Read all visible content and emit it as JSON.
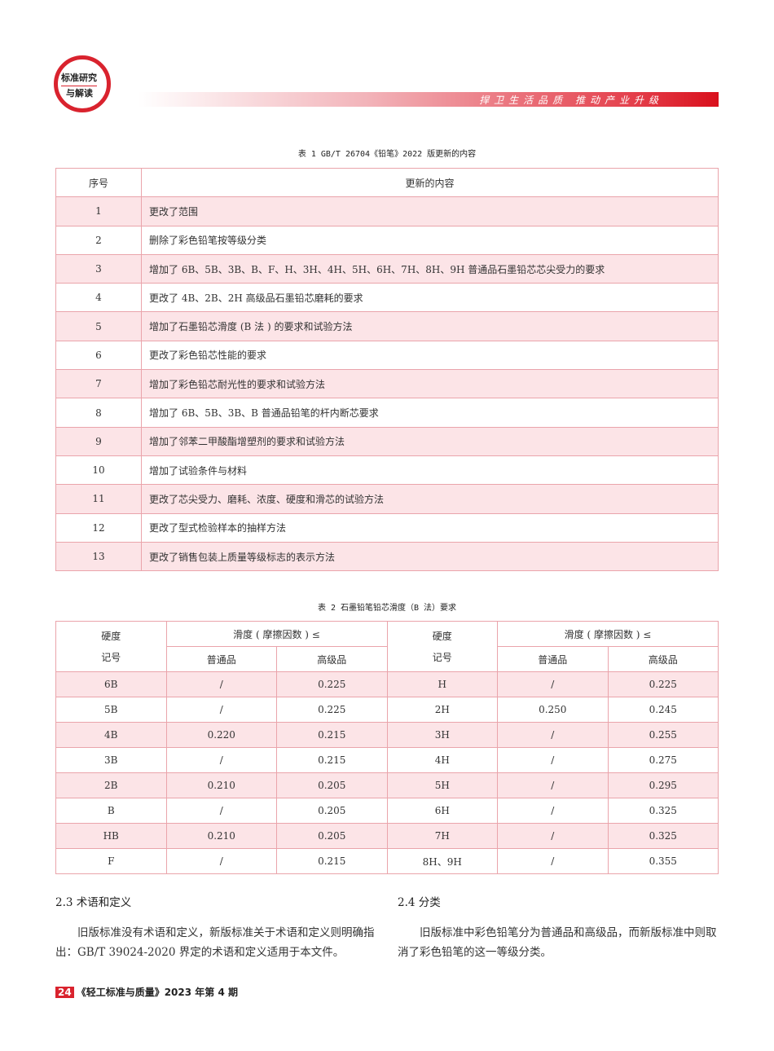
{
  "header": {
    "logo_line1": "标准研究",
    "logo_line2": "与解读",
    "slogan": "捍卫生活品质  推动产业升级",
    "accent": "#d9232e"
  },
  "table1": {
    "caption": "表 1 GB/T 26704《铅笔》2022 版更新的内容",
    "headers": [
      "序号",
      "更新的内容"
    ],
    "rows": [
      [
        "1",
        "更改了范围"
      ],
      [
        "2",
        "删除了彩色铅笔按等级分类"
      ],
      [
        "3",
        "增加了 6B、5B、3B、B、F、H、3H、4H、5H、6H、7H、8H、9H 普通品石墨铅芯芯尖受力的要求"
      ],
      [
        "4",
        "更改了 4B、2B、2H 高级品石墨铅芯磨耗的要求"
      ],
      [
        "5",
        "增加了石墨铅芯滑度 (B 法 ) 的要求和试验方法"
      ],
      [
        "6",
        "更改了彩色铅芯性能的要求"
      ],
      [
        "7",
        "增加了彩色铅芯耐光性的要求和试验方法"
      ],
      [
        "8",
        "增加了 6B、5B、3B、B 普通品铅笔的杆内断芯要求"
      ],
      [
        "9",
        "增加了邻苯二甲酸酯增塑剂的要求和试验方法"
      ],
      [
        "10",
        "增加了试验条件与材料"
      ],
      [
        "11",
        "更改了芯尖受力、磨耗、浓度、硬度和滑芯的试验方法"
      ],
      [
        "12",
        "更改了型式检验样本的抽样方法"
      ],
      [
        "13",
        "更改了销售包装上质量等级标志的表示方法"
      ]
    ]
  },
  "table2": {
    "caption": "表 2 石墨铅笔铅芯滑度（B 法）要求",
    "hardness_line1": "硬度",
    "hardness_line2": "记号",
    "group": "滑度 ( 摩擦因数 ) ≤",
    "sub": [
      "普通品",
      "高级品"
    ],
    "rows": [
      [
        "6B",
        "/",
        "0.225",
        "H",
        "/",
        "0.225"
      ],
      [
        "5B",
        "/",
        "0.225",
        "2H",
        "0.250",
        "0.245"
      ],
      [
        "4B",
        "0.220",
        "0.215",
        "3H",
        "/",
        "0.255"
      ],
      [
        "3B",
        "/",
        "0.215",
        "4H",
        "/",
        "0.275"
      ],
      [
        "2B",
        "0.210",
        "0.205",
        "5H",
        "/",
        "0.295"
      ],
      [
        "B",
        "/",
        "0.205",
        "6H",
        "/",
        "0.325"
      ],
      [
        "HB",
        "0.210",
        "0.205",
        "7H",
        "/",
        "0.325"
      ],
      [
        "F",
        "/",
        "0.215",
        "8H、9H",
        "/",
        "0.355"
      ]
    ]
  },
  "sections": [
    {
      "title": "2.3 术语和定义",
      "text": "旧版标准没有术语和定义，新版标准关于术语和定义则明确指出：GB/T 39024-2020 界定的术语和定义适用于本文件。"
    },
    {
      "title": "2.4 分类",
      "text": "旧版标准中彩色铅笔分为普通品和高级品，而新版标准中则取消了彩色铅笔的这一等级分类。"
    }
  ],
  "footer": {
    "page": "24",
    "journal": "《轻工标准与质量》2023 年第 4 期"
  }
}
